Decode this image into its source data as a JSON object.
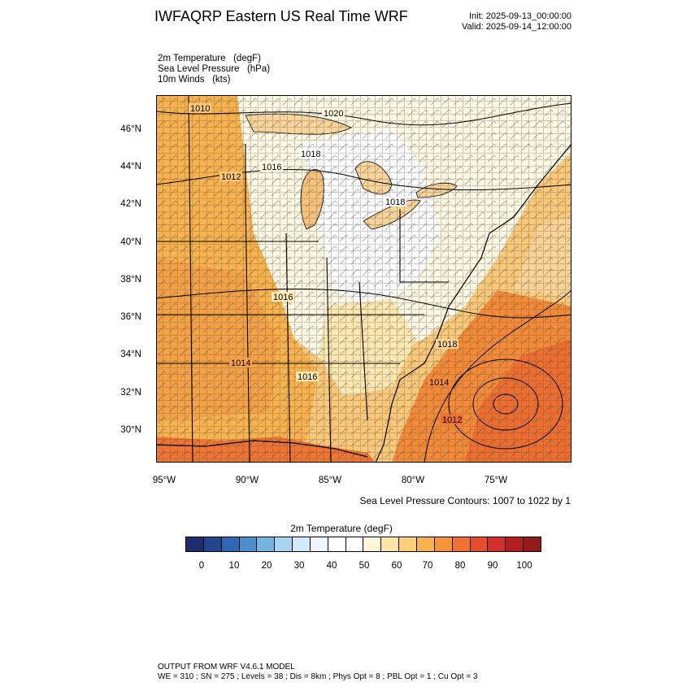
{
  "title": "IWFAQRP Eastern US Real Time WRF",
  "init": "Init: 2025-09-13_00:00:00",
  "valid": "Valid: 2025-09-14_12:00:00",
  "fields": [
    "2m Temperature   (degF)",
    "Sea Level Pressure   (hPa)",
    "10m Winds   (kts)"
  ],
  "map": {
    "lat_ticks": [
      "46°N",
      "44°N",
      "42°N",
      "40°N",
      "38°N",
      "36°N",
      "34°N",
      "32°N",
      "30°N"
    ],
    "lon_ticks": [
      "95°W",
      "90°W",
      "85°W",
      "80°W",
      "75°W"
    ],
    "contour_labels": [
      "1010",
      "1020",
      "1016",
      "1018",
      "1012",
      "1018",
      "1016",
      "1014",
      "1016",
      "1018",
      "1014",
      "1012"
    ]
  },
  "contour_note": "Sea Level Pressure Contours: 1007 to 1022 by 1",
  "colorbar": {
    "title": "2m Temperature  (degF)",
    "labels": [
      "0",
      "10",
      "20",
      "30",
      "40",
      "50",
      "60",
      "70",
      "80",
      "90",
      "100"
    ],
    "colors": [
      "#1e2d6e",
      "#22458f",
      "#2f67b5",
      "#4a8ecd",
      "#74b4e2",
      "#a8d6f2",
      "#d2eaf8",
      "#eef6fb",
      "#ffffff",
      "#ffffff",
      "#fff6d8",
      "#ffe6a6",
      "#fccf78",
      "#f9b34e",
      "#f69538",
      "#f07232",
      "#e44e2f",
      "#d1302a",
      "#b51d23",
      "#941a1c"
    ]
  },
  "footer": [
    "OUTPUT FROM WRF V4.6.1 MODEL",
    "WE = 310 ; SN = 275 ; Levels = 38 ; Dis = 8km ; Phys Opt = 8 ; PBL Opt = 1 ; Cu Opt = 3"
  ]
}
